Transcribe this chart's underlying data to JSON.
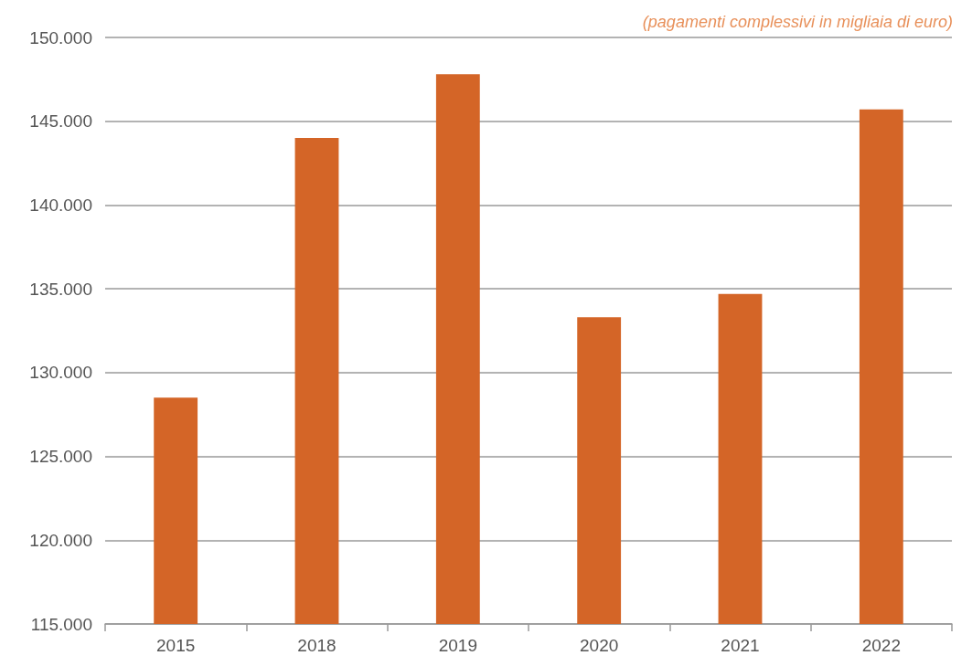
{
  "chart_data": {
    "type": "bar",
    "subtitle": "(pagamenti complessivi in migliaia di euro)",
    "categories": [
      "2015",
      "2018",
      "2019",
      "2020",
      "2021",
      "2022"
    ],
    "values": [
      128500,
      144000,
      147800,
      133300,
      134700,
      145700
    ],
    "color": "#d46527",
    "ylim": [
      115000,
      150000
    ],
    "yticks": [
      {
        "value": 115000,
        "label": "115.000"
      },
      {
        "value": 120000,
        "label": "120.000"
      },
      {
        "value": 125000,
        "label": "125.000"
      },
      {
        "value": 130000,
        "label": "130.000"
      },
      {
        "value": 135000,
        "label": "135.000"
      },
      {
        "value": 140000,
        "label": "140.000"
      },
      {
        "value": 145000,
        "label": "145.000"
      },
      {
        "value": 150000,
        "label": "150.000"
      }
    ],
    "grid": "y"
  }
}
